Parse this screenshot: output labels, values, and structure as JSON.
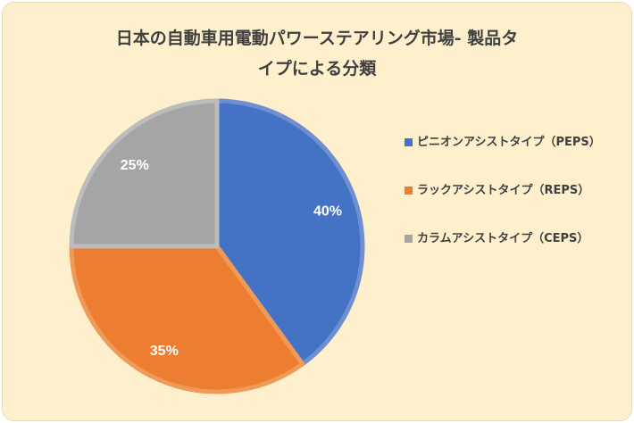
{
  "chart_data": {
    "type": "pie",
    "title_lines": [
      "日本の自動車用電動パワーステアリング市場- 製品タ",
      "イプによる分類"
    ],
    "categories": [
      "ピニオンアシストタイプ（PEPS）",
      "ラックアシストタイプ（REPS）",
      "カラムアシストタイプ（CEPS）"
    ],
    "values": [
      40,
      35,
      25
    ],
    "data_labels": [
      "40%",
      "35%",
      "25%"
    ],
    "colors": [
      "#4472C4",
      "#ED7D31",
      "#A5A5A5"
    ],
    "edge_colors": [
      "#6F8FD0",
      "#F09A5A",
      "#BCBCBC"
    ],
    "legend_position": "right",
    "start_angle": "top, clockwise"
  }
}
